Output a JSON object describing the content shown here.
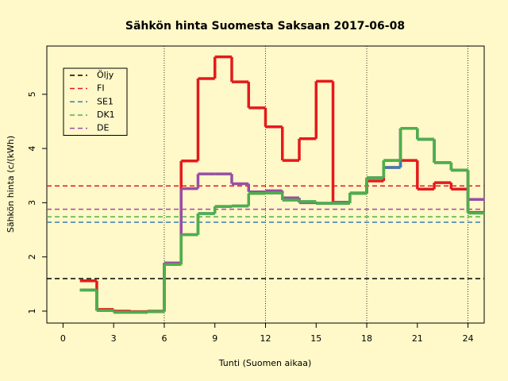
{
  "chart_data": {
    "type": "step",
    "title": "Sähkön hinta Suomesta Saksaan 2017-06-08",
    "xlabel": "Tunti (Suomen aikaa)",
    "ylabel": "Sähkön hinta (c/(kWh)",
    "x": [
      1,
      2,
      3,
      4,
      5,
      6,
      7,
      8,
      9,
      10,
      11,
      12,
      13,
      14,
      15,
      16,
      17,
      18,
      19,
      20,
      21,
      22,
      23,
      24
    ],
    "xlim": [
      -0.96,
      24.96
    ],
    "xticks": [
      0,
      3,
      6,
      9,
      12,
      15,
      18,
      21,
      24
    ],
    "ylim": [
      0.78,
      5.89
    ],
    "yticks": [
      1,
      2,
      3,
      4,
      5
    ],
    "vlines": [
      6,
      12,
      18,
      24
    ],
    "legend": "top-left",
    "series": [
      {
        "name": "Öljy",
        "color": "#000000",
        "level": 1.6
      },
      {
        "name": "FI",
        "color": "#e41a1c",
        "level": 3.31,
        "values": [
          1.56,
          1.03,
          1.0,
          0.99,
          1.0,
          1.88,
          3.77,
          5.29,
          5.69,
          5.23,
          4.75,
          4.4,
          3.78,
          4.18,
          5.24,
          3.01,
          3.17,
          3.4,
          3.65,
          3.78,
          3.25,
          3.37,
          3.25,
          2.82
        ]
      },
      {
        "name": "SE1",
        "color": "#377eb8",
        "level": 2.64,
        "values": [
          1.39,
          1.01,
          0.98,
          0.98,
          0.99,
          1.86,
          2.41,
          2.8,
          2.93,
          2.94,
          3.17,
          3.18,
          3.05,
          3.02,
          2.99,
          2.99,
          3.17,
          3.46,
          3.65,
          4.37,
          4.17,
          3.74,
          3.6,
          2.81
        ]
      },
      {
        "name": "DK1",
        "color": "#4daf4a",
        "level": 2.74,
        "values": [
          1.39,
          1.01,
          0.98,
          0.98,
          0.99,
          1.86,
          2.41,
          2.8,
          2.93,
          2.94,
          3.17,
          3.18,
          3.05,
          3.02,
          2.99,
          2.99,
          3.17,
          3.46,
          3.78,
          4.37,
          4.17,
          3.74,
          3.6,
          2.81
        ]
      },
      {
        "name": "DE",
        "color": "#984ea3",
        "level": 2.88,
        "values": [
          1.39,
          1.01,
          0.98,
          0.98,
          0.99,
          1.89,
          3.26,
          3.53,
          3.53,
          3.35,
          3.2,
          3.22,
          3.09,
          3.0,
          2.99,
          3.01,
          3.18,
          3.46,
          3.78,
          4.37,
          4.17,
          3.74,
          3.6,
          3.06
        ]
      }
    ]
  }
}
